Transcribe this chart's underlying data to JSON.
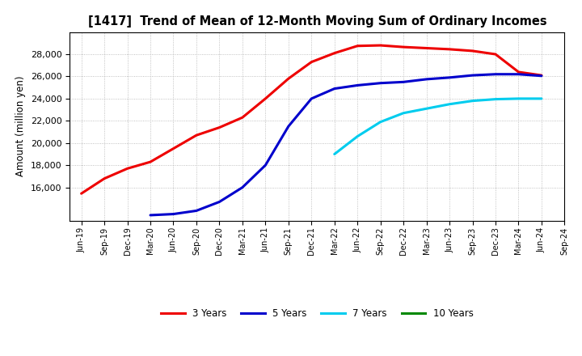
{
  "title": "[1417]  Trend of Mean of 12-Month Moving Sum of Ordinary Incomes",
  "ylabel": "Amount (million yen)",
  "background_color": "#ffffff",
  "grid_color": "#b0b0b0",
  "x_labels": [
    "Jun-19",
    "Sep-19",
    "Dec-19",
    "Mar-20",
    "Jun-20",
    "Sep-20",
    "Dec-20",
    "Mar-21",
    "Jun-21",
    "Sep-21",
    "Dec-21",
    "Mar-22",
    "Jun-22",
    "Sep-22",
    "Dec-22",
    "Mar-23",
    "Jun-23",
    "Sep-23",
    "Dec-23",
    "Mar-24",
    "Jun-24",
    "Sep-24"
  ],
  "series": {
    "3 Years": {
      "color": "#ee0000",
      "data_x": [
        0,
        1,
        2,
        3,
        4,
        5,
        6,
        7,
        8,
        9,
        10,
        11,
        12,
        13,
        14,
        15,
        16,
        17,
        18,
        19,
        20
      ],
      "data_y": [
        15450,
        16800,
        17700,
        18300,
        19500,
        20700,
        21400,
        22300,
        24000,
        25800,
        27300,
        28100,
        28750,
        28800,
        28650,
        28550,
        28450,
        28300,
        28000,
        26400,
        26100
      ]
    },
    "5 Years": {
      "color": "#0000cc",
      "data_x": [
        3,
        4,
        5,
        6,
        7,
        8,
        9,
        10,
        11,
        12,
        13,
        14,
        15,
        16,
        17,
        18,
        19,
        20
      ],
      "data_y": [
        13500,
        13600,
        13900,
        14700,
        16000,
        18000,
        21500,
        24000,
        24900,
        25200,
        25400,
        25500,
        25750,
        25900,
        26100,
        26200,
        26200,
        26050
      ]
    },
    "7 Years": {
      "color": "#00ccee",
      "data_x": [
        11,
        12,
        13,
        14,
        15,
        16,
        17,
        18,
        19,
        20
      ],
      "data_y": [
        19000,
        20600,
        21900,
        22700,
        23100,
        23500,
        23800,
        23950,
        24000,
        24000
      ]
    },
    "10 Years": {
      "color": "#008800",
      "data_x": [],
      "data_y": []
    }
  },
  "ylim": [
    13000,
    30000
  ],
  "yticks": [
    16000,
    18000,
    20000,
    22000,
    24000,
    26000,
    28000
  ],
  "legend_entries": [
    "3 Years",
    "5 Years",
    "7 Years",
    "10 Years"
  ],
  "linewidth": 2.2
}
